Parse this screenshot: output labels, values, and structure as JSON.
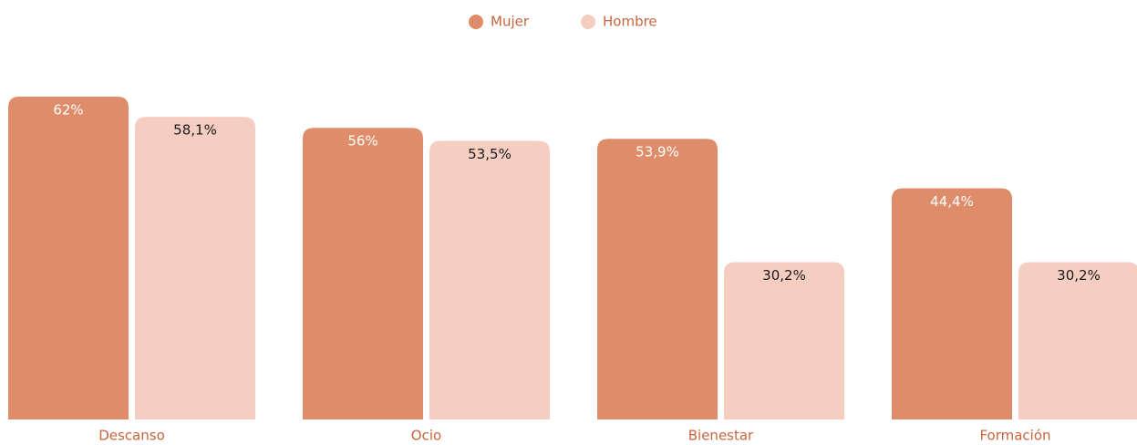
{
  "chart_data": {
    "type": "bar",
    "categories": [
      "Descanso",
      "Ocio",
      "Bienestar",
      "Formación"
    ],
    "series": [
      {
        "name": "Mujer",
        "color": "#de8c69",
        "values": [
          62,
          56,
          53.9,
          44.4
        ],
        "value_labels": [
          "62%",
          "56%",
          "53,9%",
          "44,4%"
        ]
      },
      {
        "name": "Hombre",
        "color": "#f5cdc1",
        "values": [
          58.1,
          53.5,
          30.2,
          30.2
        ],
        "value_labels": [
          "58,1%",
          "53,5%",
          "30,2%",
          "30,2%"
        ]
      }
    ]
  }
}
